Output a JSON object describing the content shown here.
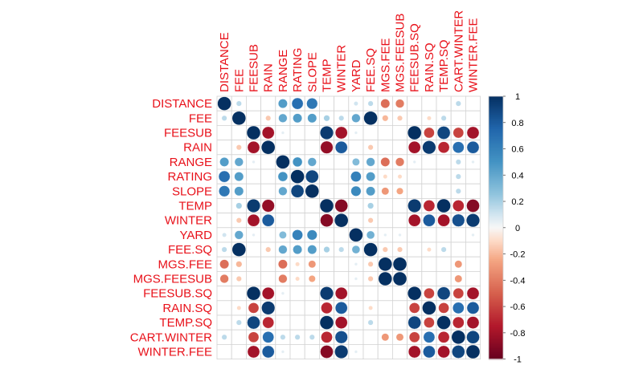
{
  "chart_data": {
    "type": "heatmap",
    "variables": [
      "DISTANCE",
      "FEE",
      "FEESUB",
      "RAIN",
      "RANGE",
      "RATING",
      "SLOPE",
      "TEMP",
      "WINTER",
      "YARD",
      "FEE.SQ",
      "MGS.FEE",
      "MGS.FEESUB",
      "FEESUB.SQ",
      "RAIN.SQ",
      "TEMP.SQ",
      "CART.WINTER",
      "WINTER.FEE"
    ],
    "matrix": [
      [
        1.0,
        0.15,
        0.0,
        0.0,
        0.45,
        0.7,
        0.65,
        0.0,
        0.0,
        0.1,
        0.15,
        -0.45,
        -0.4,
        0.0,
        0.0,
        0.0,
        0.15,
        0.0
      ],
      [
        0.15,
        1.0,
        0.0,
        -0.15,
        0.4,
        0.45,
        0.45,
        0.2,
        0.15,
        0.4,
        1.0,
        -0.2,
        -0.15,
        0.0,
        -0.1,
        0.15,
        0.0,
        0.0
      ],
      [
        0.0,
        0.0,
        1.0,
        -0.8,
        0.05,
        0.0,
        0.0,
        0.95,
        -0.8,
        0.05,
        0.0,
        0.0,
        0.0,
        1.0,
        -0.6,
        0.9,
        -0.6,
        -0.8
      ],
      [
        0.0,
        -0.15,
        -0.8,
        1.0,
        0.0,
        0.0,
        0.0,
        -0.85,
        0.8,
        0.0,
        -0.15,
        0.0,
        0.0,
        -0.8,
        0.95,
        -0.7,
        0.7,
        0.8
      ],
      [
        0.45,
        0.4,
        0.05,
        0.0,
        1.0,
        0.5,
        0.4,
        0.0,
        0.0,
        0.3,
        0.4,
        -0.45,
        -0.4,
        0.05,
        0.0,
        0.0,
        0.15,
        0.05
      ],
      [
        0.7,
        0.45,
        0.0,
        0.0,
        0.5,
        1.0,
        0.9,
        0.0,
        0.0,
        0.6,
        0.45,
        -0.1,
        -0.1,
        0.0,
        0.0,
        0.0,
        0.15,
        0.0
      ],
      [
        0.65,
        0.45,
        0.0,
        0.0,
        0.4,
        0.9,
        1.0,
        0.0,
        0.0,
        0.55,
        0.45,
        -0.3,
        -0.25,
        0.0,
        0.0,
        0.0,
        0.15,
        0.0
      ],
      [
        0.0,
        0.2,
        0.95,
        -0.85,
        0.0,
        0.0,
        0.0,
        1.0,
        -0.9,
        0.0,
        0.2,
        0.0,
        0.0,
        0.95,
        -0.7,
        1.0,
        -0.7,
        -0.9
      ],
      [
        0.0,
        -0.15,
        -0.8,
        0.8,
        0.0,
        0.0,
        0.0,
        -0.9,
        1.0,
        0.0,
        -0.15,
        0.0,
        0.0,
        -0.8,
        0.8,
        -0.8,
        0.85,
        0.95
      ],
      [
        0.1,
        0.4,
        0.05,
        0.0,
        0.3,
        0.6,
        0.55,
        0.0,
        0.0,
        1.0,
        0.35,
        0.05,
        0.05,
        0.0,
        0.0,
        0.0,
        0.0,
        0.05
      ],
      [
        0.15,
        1.0,
        0.0,
        -0.15,
        0.4,
        0.45,
        0.45,
        0.2,
        0.15,
        0.35,
        1.0,
        -0.15,
        -0.15,
        0.0,
        -0.1,
        0.15,
        0.0,
        0.0
      ],
      [
        -0.45,
        -0.2,
        0.0,
        0.0,
        -0.45,
        -0.1,
        -0.3,
        0.0,
        0.0,
        0.05,
        -0.15,
        1.0,
        1.0,
        0.0,
        0.0,
        0.0,
        -0.3,
        0.0
      ],
      [
        -0.4,
        -0.15,
        0.0,
        0.0,
        -0.4,
        -0.1,
        -0.25,
        0.0,
        0.0,
        0.05,
        -0.15,
        1.0,
        1.0,
        0.0,
        0.0,
        0.0,
        -0.3,
        0.0
      ],
      [
        0.0,
        0.0,
        1.0,
        -0.8,
        0.05,
        0.0,
        0.0,
        0.95,
        -0.8,
        0.0,
        0.0,
        0.0,
        0.0,
        1.0,
        -0.6,
        0.9,
        -0.6,
        -0.8
      ],
      [
        0.0,
        -0.1,
        -0.6,
        0.95,
        0.0,
        0.0,
        0.0,
        -0.7,
        0.8,
        0.0,
        -0.1,
        0.0,
        0.0,
        -0.6,
        1.0,
        -0.6,
        0.7,
        0.8
      ],
      [
        0.0,
        0.15,
        0.9,
        -0.7,
        0.0,
        0.0,
        0.0,
        1.0,
        -0.8,
        0.0,
        0.15,
        0.0,
        0.0,
        0.9,
        -0.6,
        1.0,
        -0.7,
        -0.8
      ],
      [
        0.15,
        0.0,
        -0.6,
        0.7,
        0.15,
        0.15,
        0.15,
        -0.7,
        0.85,
        0.0,
        0.0,
        -0.3,
        -0.3,
        -0.6,
        0.7,
        -0.7,
        1.0,
        0.9
      ],
      [
        0.0,
        0.0,
        -0.8,
        0.8,
        0.05,
        0.0,
        0.0,
        -0.9,
        0.95,
        0.05,
        0.0,
        0.0,
        0.0,
        -0.8,
        0.8,
        -0.8,
        0.9,
        1.0
      ]
    ],
    "colorbar": {
      "ticks": [
        "1",
        "0.8",
        "0.6",
        "0.4",
        "0.2",
        "0",
        "-0.2",
        "-0.4",
        "-0.6",
        "-0.8",
        "-1"
      ],
      "range": [
        -1,
        1
      ]
    },
    "colors": {
      "label": "#e8111a",
      "negative_strong": "#67001f",
      "neutral": "#f7f7f7",
      "positive_strong": "#053061",
      "grid": "#d3d3d3"
    }
  }
}
